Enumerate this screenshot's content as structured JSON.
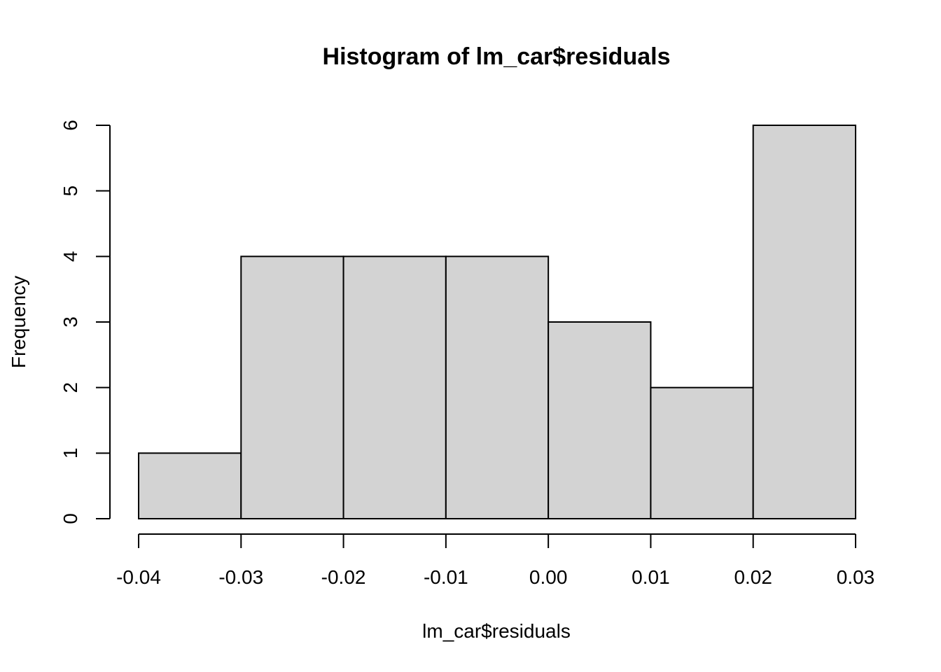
{
  "chart_data": {
    "type": "bar",
    "title": "Histogram of lm_car$residuals",
    "xlabel": "lm_car$residuals",
    "ylabel": "Frequency",
    "bins": [
      {
        "x0": -0.04,
        "x1": -0.03,
        "count": 1
      },
      {
        "x0": -0.03,
        "x1": -0.02,
        "count": 4
      },
      {
        "x0": -0.02,
        "x1": -0.01,
        "count": 4
      },
      {
        "x0": -0.01,
        "x1": 0.0,
        "count": 4
      },
      {
        "x0": 0.0,
        "x1": 0.01,
        "count": 3
      },
      {
        "x0": 0.01,
        "x1": 0.02,
        "count": 2
      },
      {
        "x0": 0.02,
        "x1": 0.03,
        "count": 6
      }
    ],
    "xlim": [
      -0.04,
      0.03
    ],
    "ylim": [
      0,
      6
    ],
    "x_ticks": [
      -0.04,
      -0.03,
      -0.02,
      -0.01,
      0.0,
      0.01,
      0.02,
      0.03
    ],
    "x_tick_labels": [
      "-0.04",
      "-0.03",
      "-0.02",
      "-0.01",
      "0.00",
      "0.01",
      "0.02",
      "0.03"
    ],
    "y_ticks": [
      0,
      1,
      2,
      3,
      4,
      5,
      6
    ],
    "y_tick_labels": [
      "0",
      "1",
      "2",
      "3",
      "4",
      "5",
      "6"
    ],
    "grid": false,
    "colors": {
      "bar_fill": "#d3d3d3",
      "bar_stroke": "#000000"
    }
  }
}
